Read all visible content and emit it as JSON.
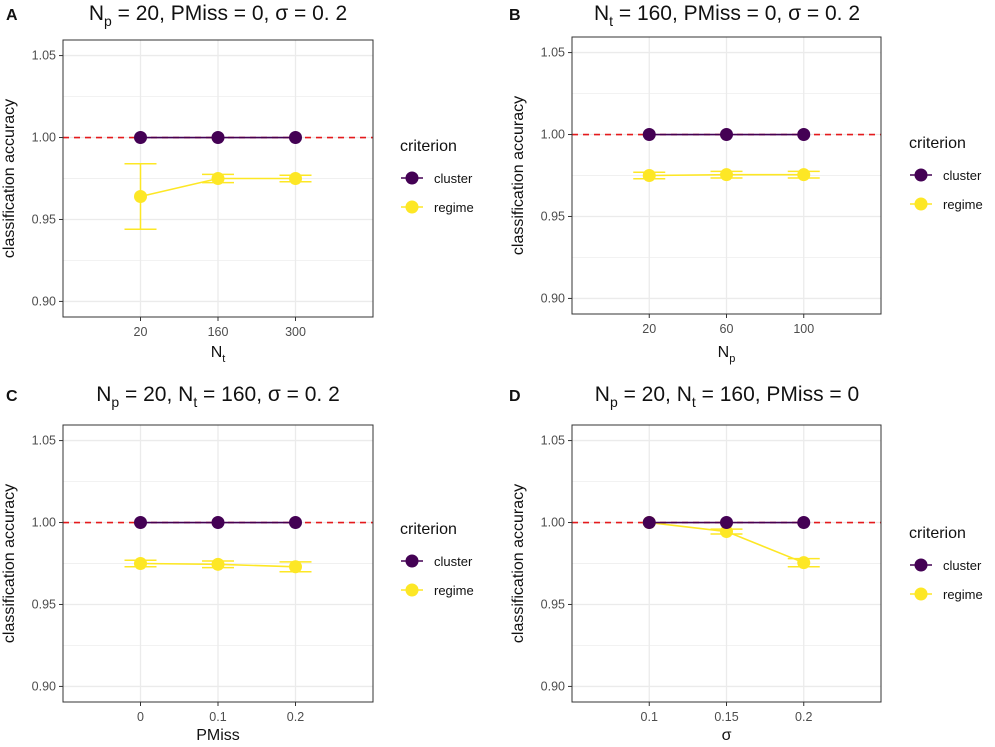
{
  "colors": {
    "cluster": "#440154",
    "regime": "#FDE725",
    "reference": "#E41A1C",
    "panel_border": "#333333",
    "grid": "#EBEBEB"
  },
  "legend": {
    "title": "criterion",
    "items": [
      {
        "label": "cluster",
        "color": "#440154"
      },
      {
        "label": "regime",
        "color": "#FDE725"
      }
    ]
  },
  "chart_data": [
    {
      "panel": "A",
      "type": "line",
      "title": {
        "base1": "N",
        "sub1": "p",
        "rest": " = 20, PMiss = 0, σ = 0. 2"
      },
      "xlabel": {
        "base": "N",
        "sub": "t"
      },
      "ylabel": "classification accuracy",
      "x_ticks": [
        "20",
        "160",
        "300"
      ],
      "y_ticks": [
        "0.90",
        "0.95",
        "1.00",
        "1.05"
      ],
      "y_values": [
        0.9,
        0.95,
        1.0,
        1.05
      ],
      "ylim": [
        0.8905,
        1.0595
      ],
      "reference_line": 1.0,
      "series": [
        {
          "name": "cluster",
          "values": [
            1.0,
            1.0,
            1.0
          ],
          "err": [
            0.0,
            0.0,
            0.0
          ]
        },
        {
          "name": "regime",
          "values": [
            0.964,
            0.975,
            0.975
          ],
          "err": [
            0.02,
            0.0025,
            0.002
          ]
        }
      ]
    },
    {
      "panel": "B",
      "type": "line",
      "title": {
        "base1": "N",
        "sub1": "t",
        "rest": " = 160, PMiss = 0, σ = 0. 2"
      },
      "xlabel": {
        "base": "N",
        "sub": "p"
      },
      "ylabel": "classification accuracy",
      "x_ticks": [
        "20",
        "60",
        "100"
      ],
      "y_ticks": [
        "0.90",
        "0.95",
        "1.00",
        "1.05"
      ],
      "y_values": [
        0.9,
        0.95,
        1.0,
        1.05
      ],
      "ylim": [
        0.8905,
        1.0595
      ],
      "reference_line": 1.0,
      "series": [
        {
          "name": "cluster",
          "values": [
            1.0,
            1.0,
            1.0
          ],
          "err": [
            0.0,
            0.0,
            0.0
          ]
        },
        {
          "name": "regime",
          "values": [
            0.975,
            0.9755,
            0.9755
          ],
          "err": [
            0.002,
            0.002,
            0.002
          ]
        }
      ]
    },
    {
      "panel": "C",
      "type": "line",
      "title": {
        "base1": "N",
        "sub1": "p",
        "rest": " = 20, ",
        "base2": "N",
        "sub2": "t",
        "rest2": " = 160, σ = 0. 2"
      },
      "xlabel": {
        "base": "PMiss",
        "sub": ""
      },
      "ylabel": "classification accuracy",
      "x_ticks": [
        "0",
        "0.1",
        "0.2"
      ],
      "y_ticks": [
        "0.90",
        "0.95",
        "1.00",
        "1.05"
      ],
      "y_values": [
        0.9,
        0.95,
        1.0,
        1.05
      ],
      "ylim": [
        0.8905,
        1.0595
      ],
      "reference_line": 1.0,
      "series": [
        {
          "name": "cluster",
          "values": [
            1.0,
            1.0,
            1.0
          ],
          "err": [
            0.0,
            0.0,
            0.0
          ]
        },
        {
          "name": "regime",
          "values": [
            0.975,
            0.9745,
            0.973
          ],
          "err": [
            0.002,
            0.002,
            0.003
          ]
        }
      ]
    },
    {
      "panel": "D",
      "type": "line",
      "title": {
        "base1": "N",
        "sub1": "p",
        "rest": " = 20, ",
        "base2": "N",
        "sub2": "t",
        "rest2": " = 160, PMiss = 0"
      },
      "xlabel": {
        "base": "σ",
        "sub": ""
      },
      "ylabel": "classification accuracy",
      "x_ticks": [
        "0.1",
        "0.15",
        "0.2"
      ],
      "y_ticks": [
        "0.90",
        "0.95",
        "1.00",
        "1.05"
      ],
      "y_values": [
        0.9,
        0.95,
        1.0,
        1.05
      ],
      "ylim": [
        0.8905,
        1.0595
      ],
      "reference_line": 1.0,
      "series": [
        {
          "name": "cluster",
          "values": [
            1.0,
            1.0,
            1.0
          ],
          "err": [
            0.0,
            0.0,
            0.0
          ]
        },
        {
          "name": "regime",
          "values": [
            1.0,
            0.9945,
            0.9755
          ],
          "err": [
            0.0,
            0.0015,
            0.0025
          ]
        }
      ]
    }
  ]
}
